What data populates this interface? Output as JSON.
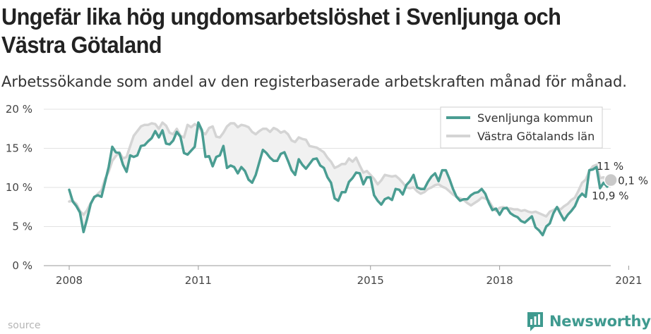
{
  "title": "Ungefär lika hög ungdomsarbetslöshet i Svenljunga och Västra Götaland",
  "subtitle": "Arbetssökande som andel av den registerbaserade arbetskraften månad för månad.",
  "source": "source",
  "brand": "Newsworthy",
  "colors": {
    "series_a": "#4a9d92",
    "series_b": "#d4d4d4",
    "grid": "#e2e2e2",
    "axis_text": "#444444"
  },
  "annotations": {
    "last_a": "11 %",
    "last_b": "10,9 %",
    "diff": "0,1 %"
  },
  "chart_data": {
    "type": "line",
    "title": "Ungefär lika hög ungdomsarbetslöshet i Svenljunga och Västra Götaland",
    "subtitle": "Arbetssökande som andel av den registerbaserade arbetskraften månad för månad.",
    "xlabel": "",
    "ylabel": "",
    "x_start": "2008-01",
    "x_ticks": [
      "2008",
      "2011",
      "2015",
      "2018",
      "2021"
    ],
    "y_ticks": [
      "0 %",
      "5 %",
      "10 %",
      "15 %",
      "20 %"
    ],
    "ylim": [
      0,
      20
    ],
    "grid": true,
    "legend": "top-right",
    "series": [
      {
        "name": "Svenljunga kommun",
        "values": [
          9.7,
          8.2,
          7.6,
          6.8,
          4.3,
          6.0,
          7.9,
          8.8,
          9.0,
          8.8,
          10.7,
          12.6,
          15.2,
          14.5,
          14.4,
          12.9,
          12.0,
          14.1,
          13.9,
          14.1,
          15.3,
          15.4,
          15.9,
          16.3,
          17.2,
          16.4,
          17.3,
          15.6,
          15.5,
          16.0,
          17.1,
          16.5,
          14.4,
          14.2,
          14.7,
          15.2,
          18.3,
          17.3,
          13.9,
          14.0,
          12.7,
          13.9,
          14.1,
          15.3,
          12.5,
          12.8,
          12.6,
          11.8,
          12.6,
          12.1,
          11.0,
          10.6,
          11.6,
          13.2,
          14.8,
          14.4,
          13.8,
          13.4,
          13.4,
          14.3,
          14.5,
          13.4,
          12.2,
          11.6,
          13.6,
          12.9,
          12.4,
          13.0,
          13.6,
          13.7,
          12.8,
          12.5,
          11.3,
          10.6,
          8.6,
          8.3,
          9.4,
          9.4,
          10.7,
          11.2,
          11.9,
          11.8,
          10.4,
          11.3,
          11.3,
          9.0,
          8.3,
          7.8,
          8.5,
          8.7,
          8.4,
          9.8,
          9.7,
          9.1,
          10.3,
          10.8,
          11.6,
          10.0,
          9.8,
          9.8,
          10.7,
          11.4,
          11.8,
          10.8,
          12.2,
          12.2,
          11.1,
          9.8,
          8.8,
          8.3,
          8.5,
          8.5,
          9.0,
          9.3,
          9.4,
          9.8,
          9.2,
          8.0,
          7.1,
          7.3,
          6.5,
          7.3,
          7.4,
          6.7,
          6.4,
          6.2,
          5.7,
          5.5,
          5.9,
          6.3,
          4.9,
          4.5,
          3.9,
          5.0,
          5.4,
          6.7,
          7.5,
          6.6,
          5.8,
          6.5,
          7.0,
          7.6,
          8.7,
          9.2,
          8.8,
          12.2,
          12.3,
          12.6,
          9.9,
          10.6,
          10.1,
          11.0
        ]
      },
      {
        "name": "Västra Götalands län",
        "values": [
          8.2,
          8.3,
          7.9,
          7.0,
          6.5,
          7.1,
          8.0,
          8.7,
          9.2,
          9.6,
          11.1,
          12.0,
          13.4,
          14.0,
          14.5,
          13.7,
          13.9,
          15.3,
          16.6,
          17.2,
          17.8,
          18.0,
          18.0,
          18.2,
          18.1,
          17.5,
          18.3,
          17.9,
          17.0,
          16.8,
          17.5,
          16.6,
          16.4,
          18.0,
          17.7,
          18.1,
          17.8,
          17.1,
          16.8,
          17.6,
          17.8,
          16.5,
          16.4,
          17.0,
          17.8,
          18.2,
          18.2,
          17.7,
          18.0,
          17.9,
          17.7,
          17.1,
          16.8,
          17.2,
          17.5,
          17.5,
          17.1,
          17.6,
          17.4,
          17.0,
          17.2,
          16.8,
          16.0,
          15.8,
          16.4,
          16.2,
          16.1,
          15.3,
          15.2,
          15.1,
          14.8,
          14.5,
          13.8,
          13.3,
          12.5,
          12.7,
          13.0,
          13.0,
          13.7,
          13.3,
          13.8,
          12.8,
          11.9,
          12.1,
          11.6,
          11.1,
          10.4,
          10.9,
          11.6,
          11.5,
          11.4,
          11.5,
          11.1,
          10.6,
          10.0,
          9.9,
          10.0,
          9.5,
          9.2,
          9.4,
          9.8,
          10.0,
          10.3,
          10.4,
          10.1,
          9.9,
          9.5,
          9.1,
          8.8,
          8.6,
          8.4,
          8.0,
          7.7,
          8.0,
          8.3,
          8.7,
          8.6,
          8.3,
          7.5,
          7.0,
          7.4,
          7.5,
          7.3,
          7.3,
          7.2,
          7.2,
          7.0,
          7.1,
          6.9,
          6.8,
          6.9,
          6.7,
          6.5,
          6.3,
          6.9,
          7.1,
          7.4,
          7.2,
          7.6,
          7.9,
          8.4,
          8.7,
          9.6,
          10.6,
          11.0,
          12.1,
          12.7,
          12.9,
          11.2,
          11.3,
          10.7,
          10.9
        ]
      }
    ]
  }
}
